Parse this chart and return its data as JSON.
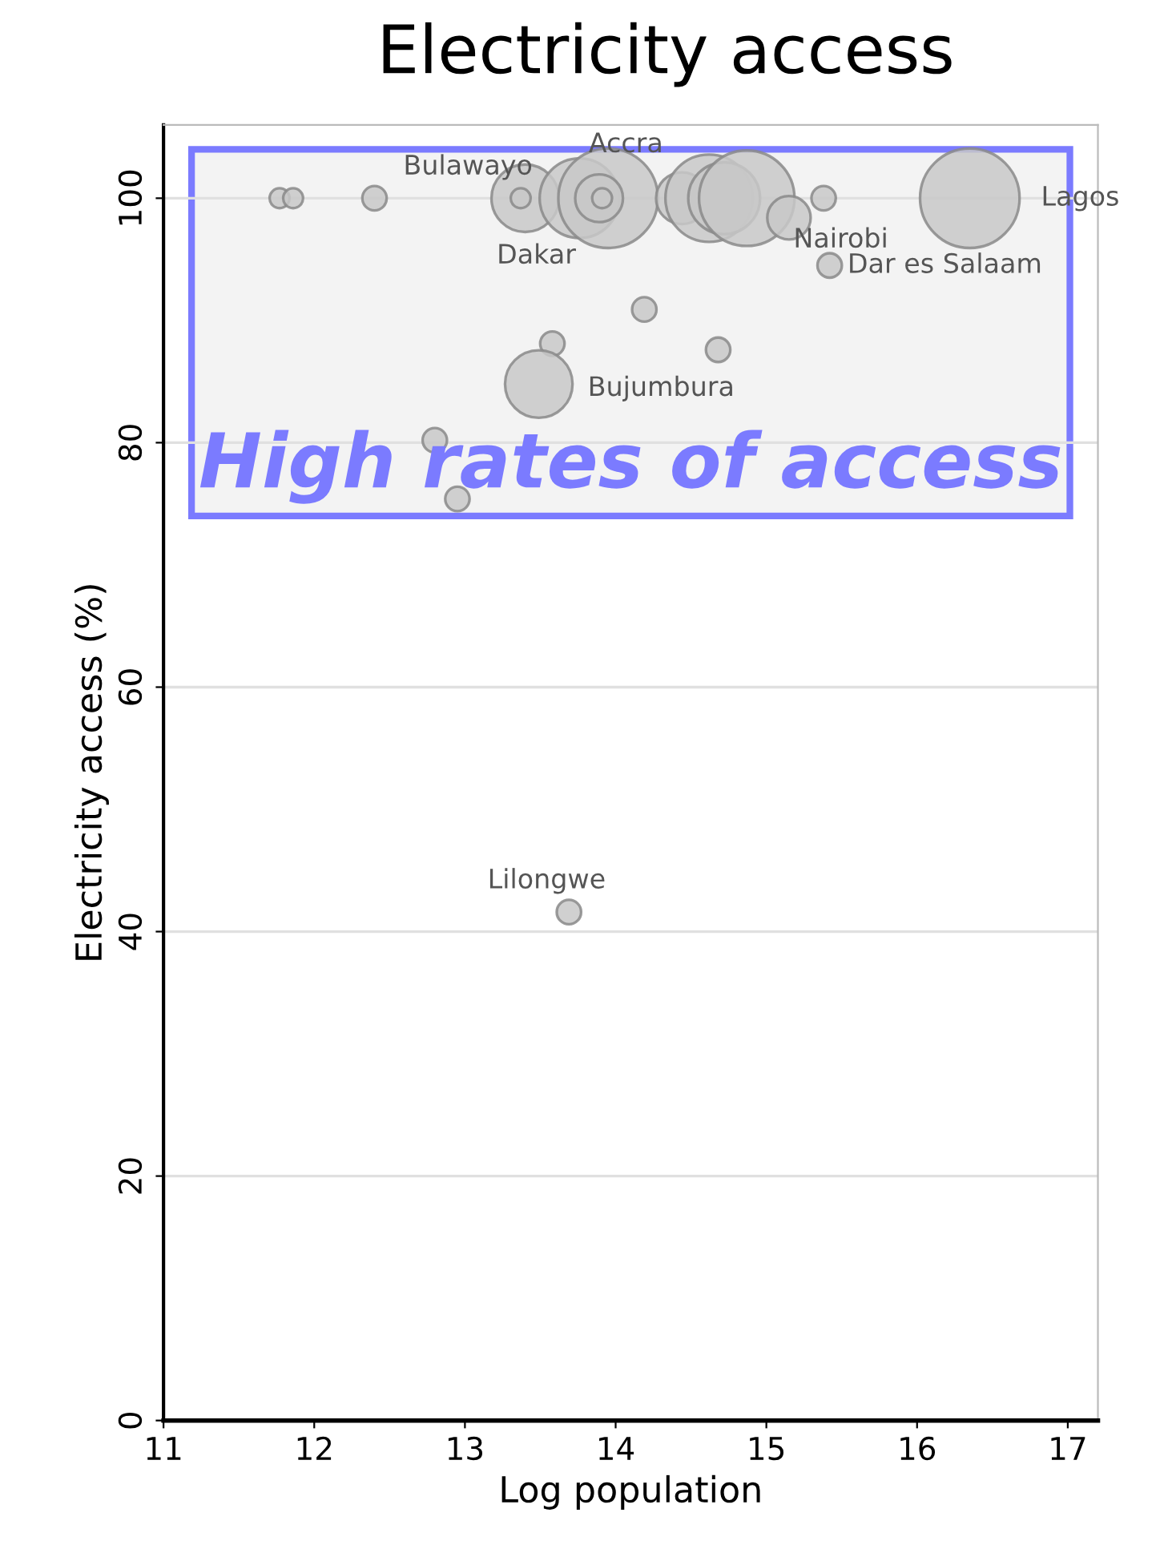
{
  "chart_data": {
    "type": "bubble",
    "title": "Electricity access",
    "xlabel": "Log population",
    "ylabel": "Electricity access (%)",
    "x": [
      11.77,
      11.86,
      12.4,
      13.4,
      13.37,
      13.76,
      13.95,
      13.89,
      13.91,
      14.44,
      14.62,
      14.72,
      14.87,
      15.15,
      15.38,
      15.42,
      16.35,
      14.19,
      13.58,
      14.68,
      13.49,
      12.8,
      12.95,
      13.69
    ],
    "values": [
      100,
      100,
      100,
      100,
      100,
      100,
      100,
      100,
      100,
      100,
      100,
      100,
      100,
      98.4,
      100,
      94.5,
      100,
      90.9,
      88.1,
      87.6,
      84.8,
      80.2,
      75.4,
      41.6
    ],
    "sizes": [
      0.04,
      0.04,
      0.06,
      0.46,
      0.04,
      0.64,
      1,
      0.23,
      0.04,
      0.27,
      0.77,
      0.52,
      0.92,
      0.19,
      0.06,
      0.06,
      1,
      0.06,
      0.06,
      0.06,
      0.46,
      0.06,
      0.06,
      0.06
    ],
    "color": "#c8c8c8",
    "xlim": [
      11,
      17.2
    ],
    "xticks": [
      11,
      12,
      13,
      14,
      15,
      16,
      17
    ],
    "ylim": [
      0,
      106
    ],
    "yticks": [
      0,
      20,
      40,
      60,
      80,
      100
    ],
    "grid": "y",
    "bands": [
      {
        "axis": "y",
        "from": 74,
        "to": 104,
        "label": "High rates of access",
        "color": "#7b7bff"
      }
    ],
    "annotations": [
      {
        "text": "Bulawayo",
        "x": 12.4,
        "y": 100
      },
      {
        "text": "Accra",
        "x": 13.95,
        "y": 100
      },
      {
        "text": "Dakar",
        "x": 13.4,
        "y": 100
      },
      {
        "text": "Nairobi",
        "x": 15.15,
        "y": 98.4
      },
      {
        "text": "Dar es Salaam",
        "x": 15.42,
        "y": 94.5
      },
      {
        "text": "Bujumbura",
        "x": 13.49,
        "y": 84.8
      },
      {
        "text": "Lagos",
        "x": 16.35,
        "y": 100
      },
      {
        "text": "Lilongwe",
        "x": 13.69,
        "y": 41.6
      }
    ]
  }
}
